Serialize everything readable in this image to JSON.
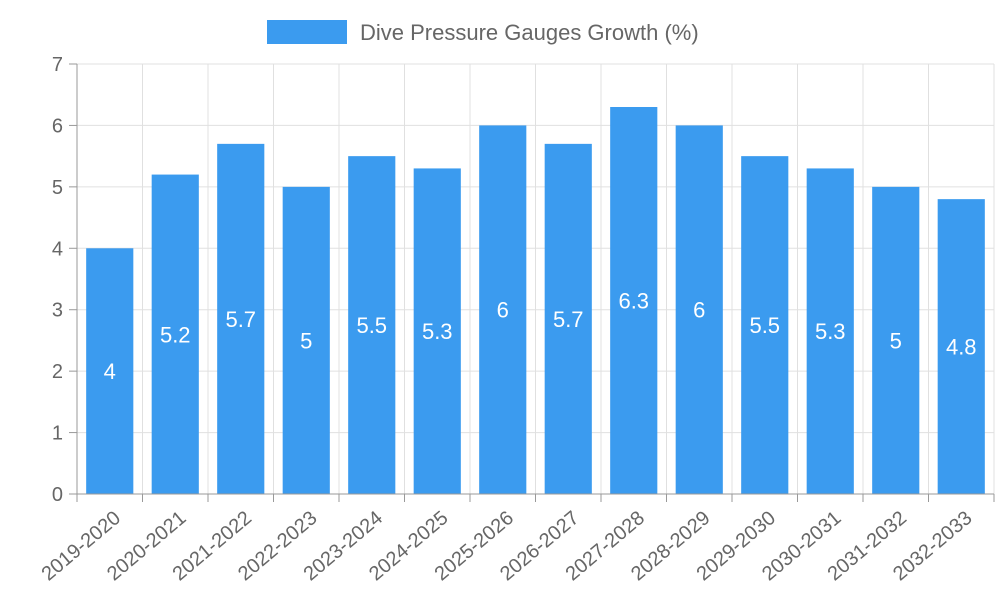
{
  "chart_data": {
    "type": "bar",
    "legend": {
      "label": "Dive Pressure Gauges Growth (%)",
      "position": "top-center",
      "color": "#3b9bef"
    },
    "categories": [
      "2019-2020",
      "2020-2021",
      "2021-2022",
      "2022-2023",
      "2023-2024",
      "2024-2025",
      "2025-2026",
      "2026-2027",
      "2027-2028",
      "2028-2029",
      "2029-2030",
      "2030-2031",
      "2031-2032",
      "2032-2033"
    ],
    "series": [
      {
        "name": "Dive Pressure Gauges Growth (%)",
        "values": [
          4,
          5.2,
          5.7,
          5,
          5.5,
          5.3,
          6,
          5.7,
          6.3,
          6,
          5.5,
          5.3,
          5,
          4.8
        ]
      }
    ],
    "y_ticks": [
      "0",
      "1",
      "2",
      "3",
      "4",
      "5",
      "6",
      "7"
    ],
    "ylim": [
      0,
      7
    ],
    "grid": true,
    "colors": {
      "bar": "#3b9bef",
      "grid": "#e0e0e0",
      "axis": "#999999",
      "text": "#666666",
      "label": "#ffffff"
    }
  }
}
